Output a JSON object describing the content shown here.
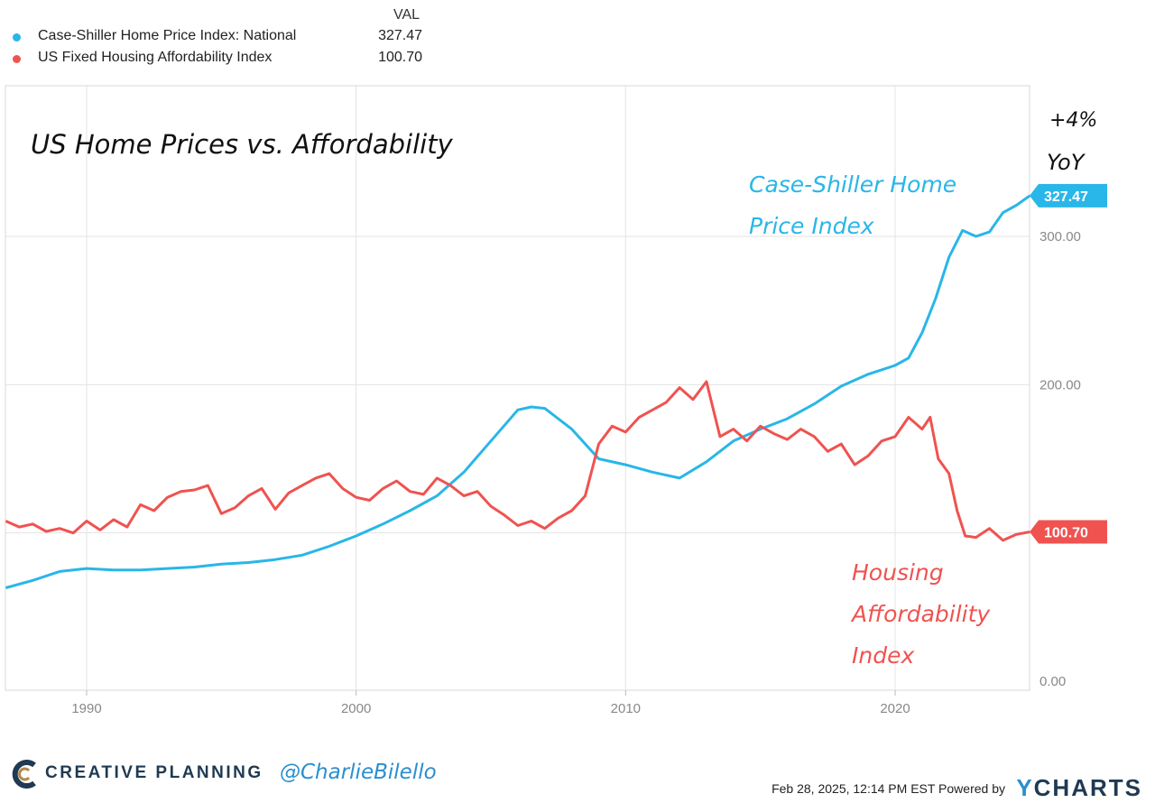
{
  "legend": {
    "header": "VAL",
    "items": [
      {
        "name": "Case-Shiller Home Price Index: National",
        "value": "327.47",
        "color": "#29b6e8"
      },
      {
        "name": "US Fixed Housing Affordability Index",
        "value": "100.70",
        "color": "#ef5350"
      }
    ]
  },
  "annotations": {
    "title": "US Home Prices vs. Affordability",
    "yoy_line1": "+4%",
    "yoy_line2": "YoY",
    "cs_label_line1": "Case-Shiller Home",
    "cs_label_line2": "Price Index",
    "haf_label_line1": "Housing",
    "haf_label_line2": "Affordability",
    "haf_label_line3": "Index"
  },
  "footer": {
    "brand": "CREATIVE PLANNING",
    "handle": "@CharlieBilello",
    "timestamp": "Feb 28, 2025, 12:14 PM EST Powered by",
    "provider_y": "Y",
    "provider_rest": "CHARTS"
  },
  "chart_data": {
    "type": "line",
    "x_range": [
      1987.0,
      2025.1
    ],
    "ylim": [
      0,
      400
    ],
    "x_ticks": [
      1990,
      2000,
      2010,
      2020
    ],
    "y_ticks": [
      {
        "value": 0,
        "label": "0.00"
      },
      {
        "value": 100,
        "label": ""
      },
      {
        "value": 200,
        "label": "200.00"
      },
      {
        "value": 300,
        "label": "300.00"
      }
    ],
    "grid": true,
    "last_value_tags": [
      {
        "series": 0,
        "label": "327.47"
      },
      {
        "series": 1,
        "label": "100.70"
      }
    ],
    "series": [
      {
        "name": "Case-Shiller Home Price Index: National",
        "color": "#29b6e8",
        "points": [
          [
            1987.0,
            63
          ],
          [
            1988.0,
            68
          ],
          [
            1989.0,
            74
          ],
          [
            1990.0,
            76
          ],
          [
            1991.0,
            75
          ],
          [
            1992.0,
            75
          ],
          [
            1993.0,
            76
          ],
          [
            1994.0,
            77
          ],
          [
            1995.0,
            79
          ],
          [
            1996.0,
            80
          ],
          [
            1997.0,
            82
          ],
          [
            1998.0,
            85
          ],
          [
            1999.0,
            91
          ],
          [
            2000.0,
            98
          ],
          [
            2001.0,
            106
          ],
          [
            2002.0,
            115
          ],
          [
            2003.0,
            125
          ],
          [
            2004.0,
            141
          ],
          [
            2005.0,
            162
          ],
          [
            2006.0,
            183
          ],
          [
            2006.5,
            185
          ],
          [
            2007.0,
            184
          ],
          [
            2008.0,
            170
          ],
          [
            2009.0,
            150
          ],
          [
            2010.0,
            146
          ],
          [
            2011.0,
            141
          ],
          [
            2012.0,
            137
          ],
          [
            2013.0,
            148
          ],
          [
            2014.0,
            162
          ],
          [
            2015.0,
            170
          ],
          [
            2016.0,
            177
          ],
          [
            2017.0,
            187
          ],
          [
            2018.0,
            199
          ],
          [
            2019.0,
            207
          ],
          [
            2020.0,
            213
          ],
          [
            2020.5,
            218
          ],
          [
            2021.0,
            235
          ],
          [
            2021.5,
            258
          ],
          [
            2022.0,
            286
          ],
          [
            2022.5,
            304
          ],
          [
            2023.0,
            300
          ],
          [
            2023.5,
            303
          ],
          [
            2024.0,
            316
          ],
          [
            2024.5,
            321
          ],
          [
            2025.0,
            327.47
          ]
        ]
      },
      {
        "name": "US Fixed Housing Affordability Index",
        "color": "#ef5350",
        "points": [
          [
            1987.0,
            108
          ],
          [
            1987.5,
            104
          ],
          [
            1988.0,
            106
          ],
          [
            1988.5,
            101
          ],
          [
            1989.0,
            103
          ],
          [
            1989.5,
            100
          ],
          [
            1990.0,
            108
          ],
          [
            1990.5,
            102
          ],
          [
            1991.0,
            109
          ],
          [
            1991.5,
            104
          ],
          [
            1992.0,
            119
          ],
          [
            1992.5,
            115
          ],
          [
            1993.0,
            124
          ],
          [
            1993.5,
            128
          ],
          [
            1994.0,
            129
          ],
          [
            1994.5,
            132
          ],
          [
            1995.0,
            113
          ],
          [
            1995.5,
            117
          ],
          [
            1996.0,
            125
          ],
          [
            1996.5,
            130
          ],
          [
            1997.0,
            116
          ],
          [
            1997.5,
            127
          ],
          [
            1998.0,
            132
          ],
          [
            1998.5,
            137
          ],
          [
            1999.0,
            140
          ],
          [
            1999.5,
            130
          ],
          [
            2000.0,
            124
          ],
          [
            2000.5,
            122
          ],
          [
            2001.0,
            130
          ],
          [
            2001.5,
            135
          ],
          [
            2002.0,
            128
          ],
          [
            2002.5,
            126
          ],
          [
            2003.0,
            137
          ],
          [
            2003.5,
            132
          ],
          [
            2004.0,
            125
          ],
          [
            2004.5,
            128
          ],
          [
            2005.0,
            118
          ],
          [
            2005.5,
            112
          ],
          [
            2006.0,
            105
          ],
          [
            2006.5,
            108
          ],
          [
            2007.0,
            103
          ],
          [
            2007.5,
            110
          ],
          [
            2008.0,
            115
          ],
          [
            2008.5,
            125
          ],
          [
            2009.0,
            160
          ],
          [
            2009.5,
            172
          ],
          [
            2010.0,
            168
          ],
          [
            2010.5,
            178
          ],
          [
            2011.0,
            183
          ],
          [
            2011.5,
            188
          ],
          [
            2012.0,
            198
          ],
          [
            2012.5,
            190
          ],
          [
            2013.0,
            202
          ],
          [
            2013.5,
            165
          ],
          [
            2014.0,
            170
          ],
          [
            2014.5,
            162
          ],
          [
            2015.0,
            172
          ],
          [
            2015.5,
            167
          ],
          [
            2016.0,
            163
          ],
          [
            2016.5,
            170
          ],
          [
            2017.0,
            165
          ],
          [
            2017.5,
            155
          ],
          [
            2018.0,
            160
          ],
          [
            2018.5,
            146
          ],
          [
            2019.0,
            152
          ],
          [
            2019.5,
            162
          ],
          [
            2020.0,
            165
          ],
          [
            2020.5,
            178
          ],
          [
            2021.0,
            170
          ],
          [
            2021.3,
            178
          ],
          [
            2021.6,
            150
          ],
          [
            2022.0,
            140
          ],
          [
            2022.3,
            115
          ],
          [
            2022.6,
            98
          ],
          [
            2023.0,
            97
          ],
          [
            2023.5,
            103
          ],
          [
            2024.0,
            95
          ],
          [
            2024.5,
            99
          ],
          [
            2025.0,
            100.7
          ]
        ]
      }
    ]
  }
}
